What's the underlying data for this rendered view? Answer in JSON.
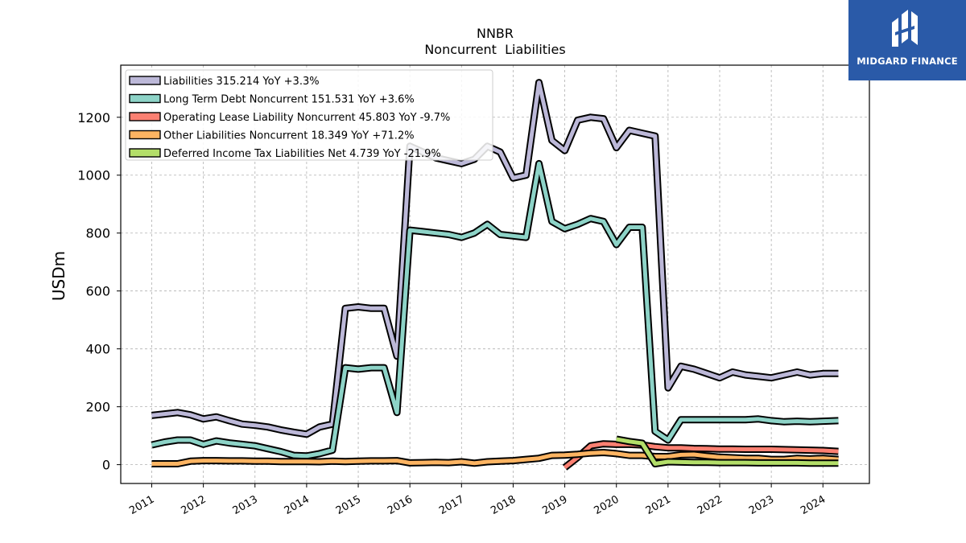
{
  "chart_data": {
    "type": "line",
    "title": "NNBR",
    "subtitle": "Noncurrent  Liabilities",
    "ylabel": "USDm",
    "xlabel": "",
    "xlim": [
      2010.4,
      2024.9
    ],
    "ylim": [
      -65,
      1380
    ],
    "yticks": [
      0,
      200,
      400,
      600,
      800,
      1000,
      1200
    ],
    "xticks": [
      2011,
      2012,
      2013,
      2014,
      2015,
      2016,
      2017,
      2018,
      2019,
      2020,
      2021,
      2022,
      2023,
      2024
    ],
    "grid": true,
    "legend_position": "top-left",
    "series": [
      {
        "name": "Liabilities  315.214 YoY +3.3%",
        "color": "#bcb8d8",
        "x": [
          2011.0,
          2011.25,
          2011.5,
          2011.75,
          2012.0,
          2012.25,
          2012.5,
          2012.75,
          2013.0,
          2013.25,
          2013.5,
          2013.75,
          2014.0,
          2014.25,
          2014.5,
          2014.75,
          2015.0,
          2015.25,
          2015.5,
          2015.75,
          2016.0,
          2016.25,
          2016.5,
          2016.75,
          2017.0,
          2017.25,
          2017.5,
          2017.75,
          2018.0,
          2018.25,
          2018.5,
          2018.75,
          2019.0,
          2019.25,
          2019.5,
          2019.75,
          2020.0,
          2020.25,
          2020.5,
          2020.75,
          2021.0,
          2021.25,
          2021.5,
          2021.75,
          2022.0,
          2022.25,
          2022.5,
          2022.75,
          2023.0,
          2023.25,
          2023.5,
          2023.75,
          2024.0,
          2024.3
        ],
        "values": [
          170,
          175,
          180,
          172,
          158,
          165,
          152,
          140,
          136,
          130,
          120,
          112,
          105,
          130,
          140,
          540,
          545,
          540,
          540,
          375,
          1100,
          1080,
          1060,
          1050,
          1040,
          1055,
          1100,
          1080,
          990,
          1000,
          1320,
          1120,
          1085,
          1190,
          1200,
          1195,
          1095,
          1155,
          1145,
          1135,
          265,
          340,
          330,
          315,
          300,
          320,
          310,
          305,
          300,
          310,
          320,
          310,
          315,
          315
        ]
      },
      {
        "name": "Long Term Debt Noncurrent  151.531 YoY +3.6%",
        "color": "#8dd3c7",
        "x": [
          2011.0,
          2011.25,
          2011.5,
          2011.75,
          2012.0,
          2012.25,
          2012.5,
          2012.75,
          2013.0,
          2013.25,
          2013.5,
          2013.75,
          2014.0,
          2014.25,
          2014.5,
          2014.75,
          2015.0,
          2015.25,
          2015.5,
          2015.75,
          2016.0,
          2016.25,
          2016.5,
          2016.75,
          2017.0,
          2017.25,
          2017.5,
          2017.75,
          2018.0,
          2018.25,
          2018.5,
          2018.75,
          2019.0,
          2019.25,
          2019.5,
          2019.75,
          2020.0,
          2020.25,
          2020.5,
          2020.75,
          2021.0,
          2021.25,
          2021.5,
          2021.75,
          2022.0,
          2022.25,
          2022.5,
          2022.75,
          2023.0,
          2023.25,
          2023.5,
          2023.75,
          2024.0,
          2024.3
        ],
        "values": [
          68,
          78,
          85,
          85,
          70,
          82,
          75,
          70,
          65,
          55,
          45,
          32,
          30,
          38,
          50,
          335,
          330,
          335,
          335,
          180,
          810,
          805,
          800,
          795,
          785,
          800,
          830,
          795,
          790,
          785,
          1040,
          840,
          815,
          830,
          850,
          840,
          760,
          820,
          820,
          115,
          85,
          155,
          155,
          155,
          155,
          155,
          155,
          158,
          152,
          148,
          150,
          148,
          150,
          152
        ]
      },
      {
        "name": "Operating Lease Liability Noncurrent  45.803 YoY -9.7%",
        "color": "#fb8072",
        "x": [
          2019.0,
          2019.25,
          2019.5,
          2019.75,
          2020.0,
          2020.25,
          2020.5,
          2020.75,
          2021.0,
          2021.25,
          2021.5,
          2021.75,
          2022.0,
          2022.25,
          2022.5,
          2022.75,
          2023.0,
          2023.25,
          2023.5,
          2023.75,
          2024.0,
          2024.3
        ],
        "values": [
          -10,
          25,
          65,
          72,
          70,
          70,
          68,
          62,
          58,
          58,
          56,
          55,
          54,
          54,
          53,
          53,
          53,
          52,
          51,
          50,
          49,
          46
        ]
      },
      {
        "name": "Other Liabilities Noncurrent  18.349 YoY +71.2%",
        "color": "#fdb462",
        "x": [
          2011.0,
          2011.25,
          2011.5,
          2011.75,
          2012.0,
          2012.25,
          2012.5,
          2012.75,
          2013.0,
          2013.25,
          2013.5,
          2013.75,
          2014.0,
          2014.25,
          2014.5,
          2014.75,
          2015.0,
          2015.25,
          2015.5,
          2015.75,
          2016.0,
          2016.25,
          2016.5,
          2016.75,
          2017.0,
          2017.25,
          2017.5,
          2017.75,
          2018.0,
          2018.25,
          2018.5,
          2018.75,
          2019.0,
          2019.25,
          2019.5,
          2019.75,
          2020.0,
          2020.25,
          2020.5,
          2020.75,
          2021.0,
          2021.25,
          2021.5,
          2021.75,
          2022.0,
          2022.25,
          2022.5,
          2022.75,
          2023.0,
          2023.25,
          2023.5,
          2023.75,
          2024.0,
          2024.3
        ],
        "values": [
          3,
          3,
          3,
          12,
          14,
          14,
          13,
          13,
          12,
          12,
          11,
          11,
          11,
          10,
          12,
          11,
          12,
          13,
          13,
          14,
          6,
          7,
          8,
          7,
          10,
          5,
          10,
          12,
          14,
          18,
          22,
          32,
          33,
          36,
          40,
          42,
          38,
          32,
          32,
          28,
          28,
          34,
          35,
          30,
          26,
          24,
          22,
          22,
          18,
          18,
          22,
          20,
          22,
          18
        ]
      },
      {
        "name": "Deferred Income Tax Liabilities Net  4.739 YoY -21.9%",
        "color": "#b3de69",
        "x": [
          2020.0,
          2020.25,
          2020.5,
          2020.75,
          2021.0,
          2021.25,
          2021.5,
          2021.75,
          2022.0,
          2022.25,
          2022.5,
          2022.75,
          2023.0,
          2023.25,
          2023.5,
          2023.75,
          2024.0,
          2024.3
        ],
        "values": [
          88,
          80,
          74,
          3,
          10,
          9,
          8,
          8,
          7,
          7,
          7,
          6,
          6,
          6,
          6,
          5,
          5,
          5
        ]
      }
    ]
  },
  "branding": {
    "logo_text": "MIDGARD FINANCE",
    "logo_color": "#2a5aa8"
  }
}
